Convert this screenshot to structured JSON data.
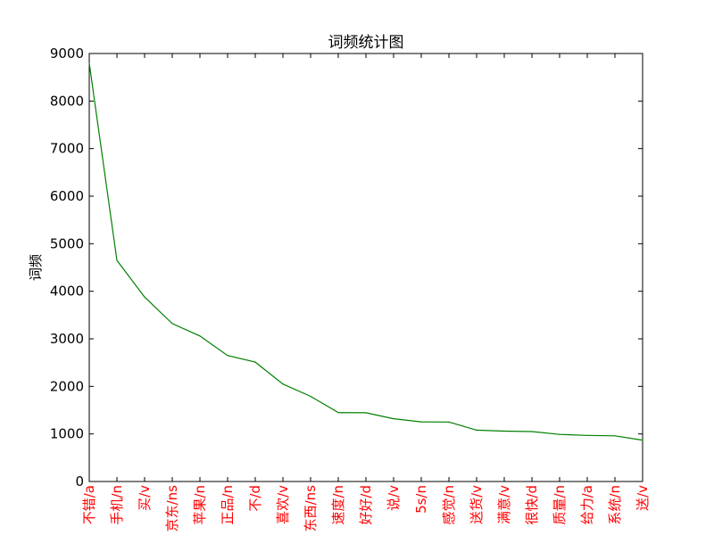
{
  "chart_data": {
    "type": "line",
    "title": "词频统计图",
    "xlabel": "",
    "ylabel": "词频",
    "ylim": [
      0,
      9000
    ],
    "yticks": [
      "0",
      "1000",
      "2000",
      "3000",
      "4000",
      "5000",
      "6000",
      "7000",
      "8000",
      "9000"
    ],
    "categories": [
      "不错/a",
      "手机/n",
      "买/v",
      "京东/ns",
      "苹果/n",
      "正品/n",
      "不/d",
      "喜欢/v",
      "东西/ns",
      "速度/n",
      "好好/d",
      "说/v",
      "5s/n",
      "感觉/n",
      "送货/v",
      "满意/v",
      "很快/d",
      "质量/n",
      "给力/a",
      "系统/n",
      "送/v"
    ],
    "series": [
      {
        "values": [
          8800,
          4650,
          3880,
          3320,
          3060,
          2650,
          2510,
          2050,
          1790,
          1450,
          1445,
          1320,
          1255,
          1250,
          1080,
          1060,
          1050,
          990,
          970,
          960,
          870
        ],
        "color": "#008000"
      }
    ],
    "grid": false,
    "tick_label_color": "#ff0000",
    "line_color": "#008000"
  }
}
